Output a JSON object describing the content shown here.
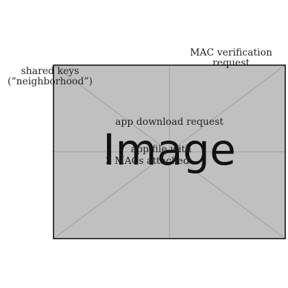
{
  "figure": {
    "placeholder_text": "Image",
    "colors": {
      "placeholder_fill": "#c0c0c0",
      "placeholder_lines": "#9e9e9e",
      "frame": "#000000"
    }
  },
  "labels": {
    "shared_keys": {
      "line1": "shared keys",
      "line2": "(“neighborhood”)"
    },
    "mac_verification": {
      "line1": "MAC verification",
      "line2": "request"
    },
    "app_download": "app download request",
    "app_file": "app file with",
    "macs_attached": "3 MACs attached"
  }
}
